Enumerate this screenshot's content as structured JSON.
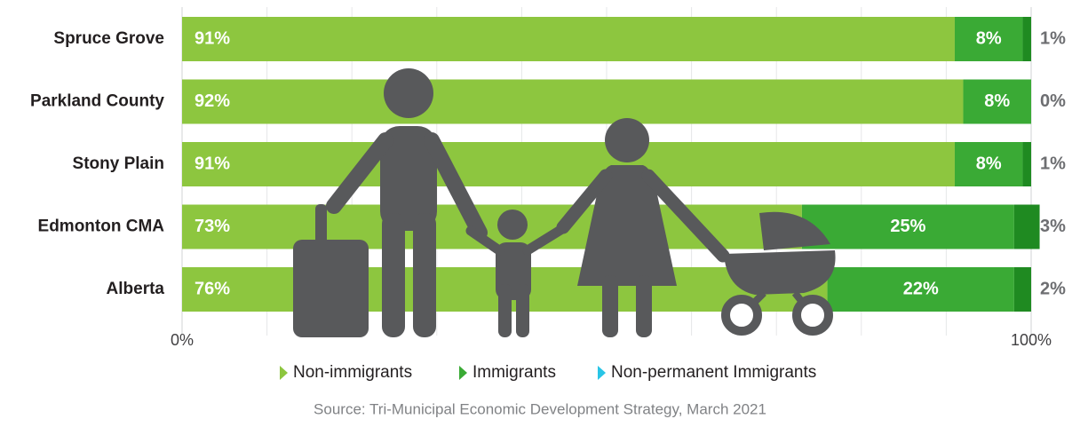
{
  "chart_data": {
    "type": "stacked-bar",
    "orientation": "horizontal",
    "categories": [
      "Spruce Grove",
      "Parkland County",
      "Stony Plain",
      "Edmonton CMA",
      "Alberta"
    ],
    "series": [
      {
        "name": "Non-immigrants",
        "color": "#8dc63f",
        "legend_color": "#8dc63f",
        "values": [
          91,
          92,
          91,
          73,
          76
        ],
        "value_labels": [
          "91%",
          "92%",
          "91%",
          "73%",
          "76%"
        ]
      },
      {
        "name": "Immigrants",
        "color": "#3aaa35",
        "legend_color": "#3aaa35",
        "values": [
          8,
          8,
          8,
          25,
          22
        ],
        "value_labels": [
          "8%",
          "8%",
          "8%",
          "25%",
          "22%"
        ]
      },
      {
        "name": "Non-permanent Immigrants",
        "color": "#1f8a21",
        "legend_color": "#29c5e6",
        "values": [
          1,
          0,
          1,
          3,
          2
        ],
        "value_labels": [
          "1%",
          "0%",
          "1%",
          "3%",
          "2%"
        ]
      }
    ],
    "xlim": [
      0,
      100
    ],
    "xticks": [
      {
        "value": 0,
        "label": "0%"
      },
      {
        "value": 100,
        "label": "100%"
      }
    ],
    "minor_xticks": [
      10,
      20,
      30,
      40,
      50,
      60,
      70,
      80,
      90
    ],
    "grid": true,
    "legend": "bottom",
    "source": "Source: Tri-Municipal Economic Development Strategy, March 2021"
  }
}
